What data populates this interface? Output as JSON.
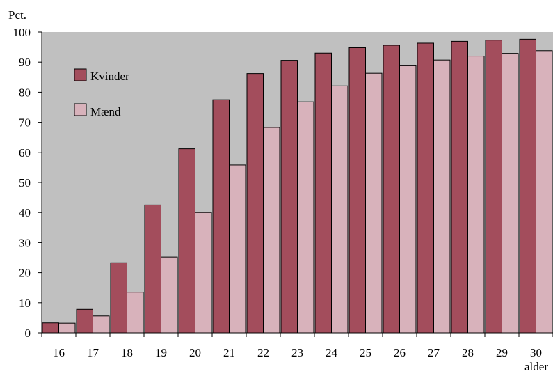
{
  "chart_data": {
    "type": "bar",
    "ylabel": "Pct.",
    "xlabel": "alder",
    "ylim": [
      0,
      100
    ],
    "yticks": [
      0,
      10,
      20,
      30,
      40,
      50,
      60,
      70,
      80,
      90,
      100
    ],
    "categories": [
      "16",
      "17",
      "18",
      "19",
      "20",
      "21",
      "22",
      "23",
      "24",
      "25",
      "26",
      "27",
      "28",
      "29",
      "30"
    ],
    "series": [
      {
        "name": "Kvinder",
        "color": "#a34d5c",
        "values": [
          3.3,
          7.8,
          23.3,
          42.5,
          61.2,
          77.5,
          86.2,
          90.6,
          93.0,
          94.8,
          95.6,
          96.3,
          96.9,
          97.3,
          97.6
        ]
      },
      {
        "name": "Mænd",
        "color": "#d8b2bb",
        "values": [
          3.2,
          5.6,
          13.5,
          25.2,
          40.0,
          55.8,
          68.3,
          76.8,
          82.1,
          86.3,
          88.8,
          90.7,
          92.0,
          92.9,
          93.8
        ]
      }
    ],
    "grid": false,
    "legend": "top-left",
    "background": "#c0c0c0"
  }
}
